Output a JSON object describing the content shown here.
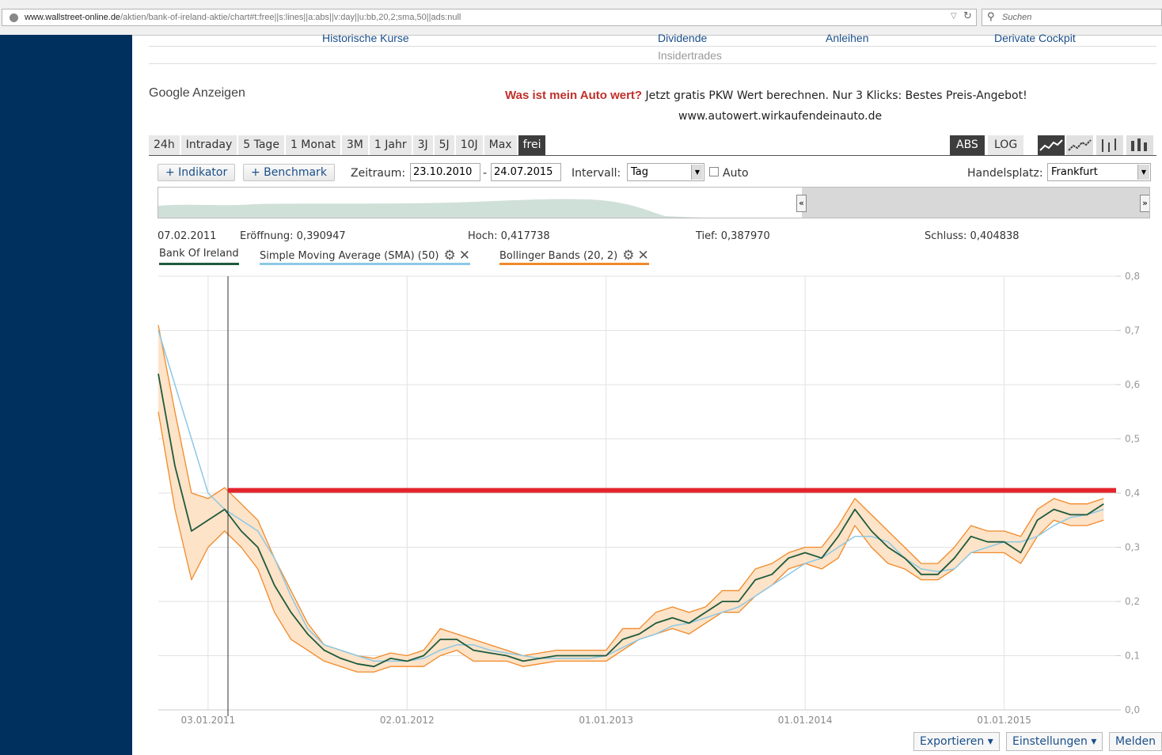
{
  "browser": {
    "url_domain": "www.wallstreet-online.de",
    "url_path": "/aktien/bank-of-ireland-aktie/chart#t:free||s:lines||a:abs||v:day||u:bb,20,2;sma,50||ads:null",
    "search_placeholder": "Suchen"
  },
  "nav": {
    "links": [
      "Historische Kurse",
      "Dividende",
      "Anleihen",
      "Derivate Cockpit"
    ],
    "insider": "Insidertrades"
  },
  "ads": {
    "label": "Google Anzeigen",
    "headline": "Was ist mein Auto wert?",
    "text": "Jetzt gratis PKW Wert berechnen.  Nur 3 Klicks: Bestes Preis-Angebot!",
    "url": "www.autowert.wirkaufendeinauto.de"
  },
  "tabs": [
    "24h",
    "Intraday",
    "5 Tage",
    "1 Monat",
    "3M",
    "1 Jahr",
    "3J",
    "5J",
    "10J",
    "Max",
    "frei"
  ],
  "active_tab": "frei",
  "scale": {
    "abs": "ABS",
    "log": "LOG"
  },
  "controls": {
    "indikator": "+ Indikator",
    "benchmark": "+ Benchmark",
    "zeitraum_label": "Zeitraum:",
    "from": "23.10.2010",
    "sep": "-",
    "to": "24.07.2015",
    "intervall_label": "Intervall:",
    "intervall": "Tag",
    "auto": "Auto",
    "handelsplatz_label": "Handelsplatz:",
    "handelsplatz": "Frankfurt"
  },
  "navigator": {
    "left": "«",
    "right": "»"
  },
  "info": {
    "date": "07.02.2011",
    "open": "Eröffnung: 0,390947",
    "high": "Hoch: 0,417738",
    "low": "Tief: 0,387970",
    "close": "Schluss: 0,404838"
  },
  "legend": [
    {
      "label": "Bank Of Ireland",
      "color": "#1e5a3c"
    },
    {
      "label": "Simple Moving Average (SMA) (50)",
      "color": "#8dc8e6"
    },
    {
      "label": "Bollinger Bands (20, 2)",
      "color": "#f08a2a"
    }
  ],
  "colors": {
    "price": "#1e5a3c",
    "sma": "#8dc8e6",
    "band_line": "#f08a2a",
    "band_fill": "#fde3c8",
    "marker": "#e3242b",
    "sidebar": "#00305e"
  },
  "chart_data": {
    "type": "line",
    "x_labels": [
      "03.01.2011",
      "02.01.2012",
      "01.01.2013",
      "01.01.2014",
      "01.01.2015"
    ],
    "y_ticks": [
      "0,0",
      "0,1",
      "0,2",
      "0,3",
      "0,4",
      "0,5",
      "0,6",
      "0,7",
      "0,8"
    ],
    "ylim": [
      0,
      0.8
    ],
    "x": [
      "2010-10",
      "2010-11",
      "2010-12",
      "2011-01",
      "2011-02",
      "2011-03",
      "2011-04",
      "2011-05",
      "2011-06",
      "2011-07",
      "2011-08",
      "2011-09",
      "2011-10",
      "2011-11",
      "2011-12",
      "2012-01",
      "2012-02",
      "2012-03",
      "2012-04",
      "2012-05",
      "2012-06",
      "2012-07",
      "2012-08",
      "2012-09",
      "2012-10",
      "2012-11",
      "2012-12",
      "2013-01",
      "2013-02",
      "2013-03",
      "2013-04",
      "2013-05",
      "2013-06",
      "2013-07",
      "2013-08",
      "2013-09",
      "2013-10",
      "2013-11",
      "2013-12",
      "2014-01",
      "2014-02",
      "2014-03",
      "2014-04",
      "2014-05",
      "2014-06",
      "2014-07",
      "2014-08",
      "2014-09",
      "2014-10",
      "2014-11",
      "2014-12",
      "2015-01",
      "2015-02",
      "2015-03",
      "2015-04",
      "2015-05",
      "2015-06",
      "2015-07"
    ],
    "series": [
      {
        "name": "Bank Of Ireland",
        "values": [
          0.62,
          0.45,
          0.33,
          0.35,
          0.37,
          0.33,
          0.3,
          0.23,
          0.18,
          0.14,
          0.11,
          0.095,
          0.085,
          0.08,
          0.095,
          0.09,
          0.1,
          0.13,
          0.13,
          0.11,
          0.105,
          0.1,
          0.09,
          0.095,
          0.1,
          0.1,
          0.1,
          0.1,
          0.13,
          0.14,
          0.16,
          0.17,
          0.16,
          0.18,
          0.2,
          0.2,
          0.24,
          0.25,
          0.28,
          0.29,
          0.28,
          0.32,
          0.37,
          0.33,
          0.3,
          0.28,
          0.25,
          0.25,
          0.28,
          0.32,
          0.31,
          0.31,
          0.29,
          0.35,
          0.37,
          0.36,
          0.36,
          0.38
        ]
      },
      {
        "name": "Simple Moving Average (SMA) (50)",
        "values": [
          0.7,
          0.6,
          0.5,
          0.4,
          0.37,
          0.35,
          0.33,
          0.28,
          0.21,
          0.15,
          0.12,
          0.11,
          0.1,
          0.09,
          0.09,
          0.09,
          0.095,
          0.11,
          0.12,
          0.12,
          0.11,
          0.105,
          0.1,
          0.095,
          0.095,
          0.095,
          0.095,
          0.1,
          0.115,
          0.13,
          0.14,
          0.155,
          0.16,
          0.17,
          0.18,
          0.19,
          0.21,
          0.23,
          0.25,
          0.27,
          0.28,
          0.3,
          0.32,
          0.32,
          0.31,
          0.28,
          0.26,
          0.255,
          0.26,
          0.29,
          0.3,
          0.31,
          0.31,
          0.32,
          0.34,
          0.355,
          0.36,
          0.37
        ]
      },
      {
        "name": "Bollinger Bands (20, 2) upper",
        "values": [
          0.71,
          0.55,
          0.4,
          0.39,
          0.41,
          0.38,
          0.35,
          0.28,
          0.22,
          0.16,
          0.12,
          0.11,
          0.1,
          0.095,
          0.105,
          0.1,
          0.11,
          0.15,
          0.14,
          0.13,
          0.12,
          0.11,
          0.1,
          0.105,
          0.11,
          0.11,
          0.11,
          0.11,
          0.15,
          0.15,
          0.18,
          0.19,
          0.18,
          0.19,
          0.22,
          0.22,
          0.26,
          0.27,
          0.29,
          0.3,
          0.3,
          0.34,
          0.39,
          0.36,
          0.33,
          0.3,
          0.27,
          0.27,
          0.3,
          0.34,
          0.33,
          0.33,
          0.32,
          0.37,
          0.39,
          0.38,
          0.38,
          0.39
        ]
      },
      {
        "name": "Bollinger Bands (20, 2) lower",
        "values": [
          0.55,
          0.37,
          0.24,
          0.3,
          0.33,
          0.3,
          0.26,
          0.18,
          0.13,
          0.11,
          0.09,
          0.08,
          0.07,
          0.07,
          0.08,
          0.08,
          0.08,
          0.1,
          0.11,
          0.09,
          0.09,
          0.09,
          0.08,
          0.085,
          0.09,
          0.09,
          0.09,
          0.09,
          0.11,
          0.13,
          0.14,
          0.15,
          0.14,
          0.16,
          0.18,
          0.18,
          0.21,
          0.23,
          0.26,
          0.27,
          0.26,
          0.28,
          0.34,
          0.3,
          0.27,
          0.26,
          0.24,
          0.24,
          0.26,
          0.29,
          0.29,
          0.29,
          0.27,
          0.32,
          0.35,
          0.34,
          0.34,
          0.35
        ]
      }
    ],
    "marker_line": {
      "x": "2011-02-07",
      "y": 0.405
    }
  }
}
